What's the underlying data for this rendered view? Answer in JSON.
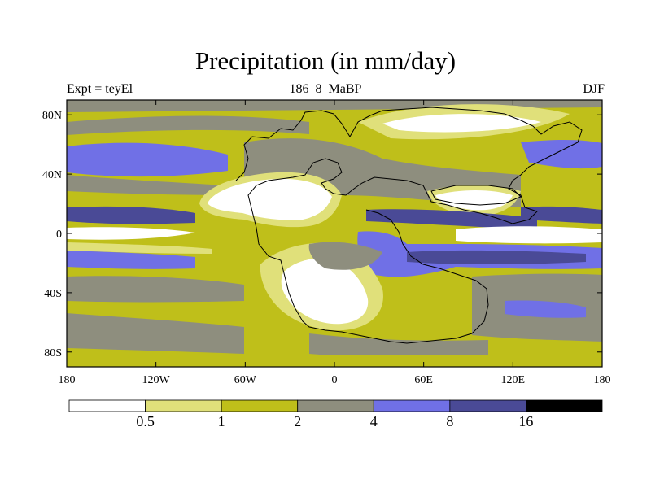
{
  "title": "Precipitation (in mm/day)",
  "subtitle_left": "Expt = teyEl",
  "subtitle_center": "186_8_MaBP",
  "subtitle_right": "DJF",
  "lat_ticks": [
    {
      "value": 80,
      "label": "80N"
    },
    {
      "value": 40,
      "label": "40N"
    },
    {
      "value": 0,
      "label": "0"
    },
    {
      "value": -40,
      "label": "40S"
    },
    {
      "value": -80,
      "label": "80S"
    }
  ],
  "lon_ticks": [
    {
      "value": -180,
      "label": "180"
    },
    {
      "value": -120,
      "label": "120W"
    },
    {
      "value": -60,
      "label": "60W"
    },
    {
      "value": 0,
      "label": "0"
    },
    {
      "value": 60,
      "label": "60E"
    },
    {
      "value": 120,
      "label": "120E"
    },
    {
      "value": 180,
      "label": "180"
    }
  ],
  "colorbar": {
    "colors": [
      "#ffffff",
      "#e0e07a",
      "#bfbf1a",
      "#8e8e7e",
      "#7070e6",
      "#4a4a96",
      "#000000"
    ],
    "labels": [
      "0.5",
      "1",
      "2",
      "4",
      "8",
      "16"
    ]
  },
  "palette": {
    "white": "#ffffff",
    "pale": "#e0e07a",
    "olive": "#bfbf1a",
    "gray": "#8e8e7e",
    "blue": "#7070e6",
    "navy": "#4a4a96"
  }
}
